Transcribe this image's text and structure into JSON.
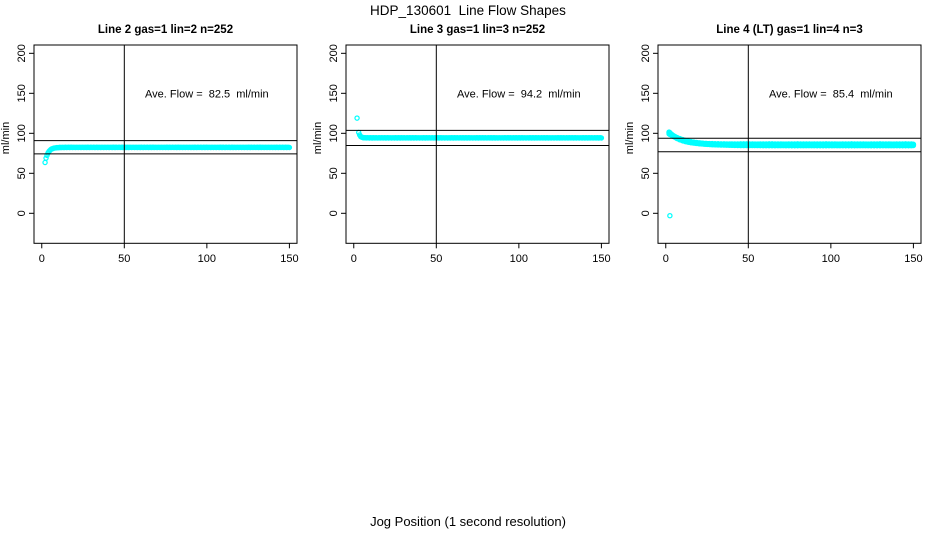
{
  "chart_data": {
    "type": "scatter",
    "title": "HDP_130601  Line Flow Shapes",
    "xlabel": "Jog Position (1 second resolution)",
    "ylabel": "ml/min",
    "x_ticks": [
      0,
      50,
      100,
      150
    ],
    "y_ticks": [
      0,
      50,
      100,
      150,
      200
    ],
    "xlim": [
      -4.7,
      154.6
    ],
    "ylim": [
      -37.5,
      210.4
    ],
    "grid": false,
    "legend": "none",
    "marker": {
      "shape": "open-circle",
      "radius": 2.1,
      "stroke_width": 1.25,
      "color": "#00ffff"
    },
    "line_color": "#000000",
    "background": "#ffffff",
    "panels": [
      {
        "title": "Line 2 gas=1 lin=2 n=252",
        "ave_flow": 82.5,
        "ave_flow_label": "Ave. Flow =  82.5  ml/min",
        "annotation_xy": [
          100,
          150
        ],
        "n": 252,
        "hlines": [
          90.8,
          74.3
        ],
        "vline": 50,
        "outliers": [],
        "jitter": 0.15,
        "series": [
          {
            "x_start": 2,
            "x_end": 150,
            "n": 252,
            "y_start": 63.5,
            "plateau": 82.4,
            "tau": 1.8
          }
        ],
        "key_points": [
          [
            2,
            63.5
          ],
          [
            3,
            71.5
          ],
          [
            4,
            76.1
          ],
          [
            5,
            78.8
          ],
          [
            6,
            80.4
          ],
          [
            8,
            81.7
          ],
          [
            10,
            82.2
          ],
          [
            20,
            82.4
          ],
          [
            50,
            82.4
          ],
          [
            100,
            82.4
          ],
          [
            150,
            82.4
          ]
        ]
      },
      {
        "title": "Line 3 gas=1 lin=3 n=252",
        "ave_flow": 94.2,
        "ave_flow_label": "Ave. Flow =  94.2  ml/min",
        "annotation_xy": [
          100,
          150
        ],
        "n": 252,
        "hlines": [
          103.6,
          84.8
        ],
        "vline": 50,
        "outliers": [
          [
            2,
            119
          ]
        ],
        "jitter": 0.15,
        "series": [
          {
            "x_start": 3,
            "x_end": 150,
            "n": 252,
            "y_start": 101,
            "plateau": 94.3,
            "tau": 0.9
          }
        ],
        "key_points": [
          [
            2,
            119
          ],
          [
            3,
            101
          ],
          [
            4,
            96.8
          ],
          [
            5,
            95.1
          ],
          [
            6,
            94.6
          ],
          [
            8,
            94.3
          ],
          [
            10,
            94.3
          ],
          [
            50,
            94.3
          ],
          [
            100,
            94.3
          ],
          [
            150,
            94.3
          ]
        ]
      },
      {
        "title": "Line 4 (LT) gas=1 lin=4 n=3",
        "ave_flow": 85.4,
        "ave_flow_label": "Ave. Flow =  85.4  ml/min",
        "annotation_xy": [
          100,
          150
        ],
        "n": 3,
        "hlines": [
          93.9,
          76.9
        ],
        "vline": 50,
        "outliers": [
          [
            2.5,
            -3
          ]
        ],
        "jitter": 0.45,
        "series": [
          {
            "x_start": 2,
            "x_end": 150,
            "n": 250,
            "y_start": 101.5,
            "plateau": 86.3,
            "tau": 7
          },
          {
            "x_start": 2,
            "x_end": 150,
            "n": 250,
            "y_start": 100.5,
            "plateau": 85.5,
            "tau": 9
          },
          {
            "x_start": 2,
            "x_end": 150,
            "n": 250,
            "y_start": 99.5,
            "plateau": 84.9,
            "tau": 11
          }
        ],
        "key_points": [
          [
            2,
            100.5
          ],
          [
            5,
            96.5
          ],
          [
            10,
            91.8
          ],
          [
            15,
            89.3
          ],
          [
            20,
            87.7
          ],
          [
            30,
            86.2
          ],
          [
            40,
            85.8
          ],
          [
            50,
            85.7
          ],
          [
            100,
            85.5
          ],
          [
            150,
            85.4
          ]
        ]
      }
    ]
  }
}
